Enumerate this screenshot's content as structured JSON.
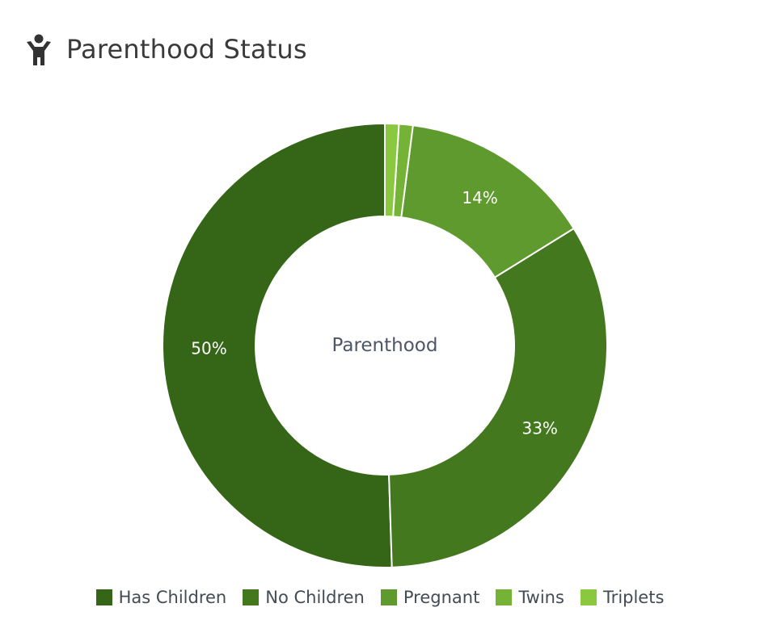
{
  "header": {
    "title": "Parenthood Status",
    "icon": "child-figure-icon"
  },
  "chart_data": {
    "type": "pie",
    "donut": true,
    "center_label": "Parenthood",
    "categories": [
      "Has Children",
      "No Children",
      "Pregnant",
      "Twins",
      "Triplets"
    ],
    "values": [
      50,
      33,
      14,
      1,
      1
    ],
    "data_labels": [
      "50%",
      "33%",
      "14%",
      "",
      ""
    ],
    "colors": [
      "#356517",
      "#43781f",
      "#5e9a2d",
      "#74b335",
      "#8ac83f"
    ],
    "start_angle_deg": 0,
    "direction": "counterclockwise",
    "legend_position": "bottom"
  }
}
